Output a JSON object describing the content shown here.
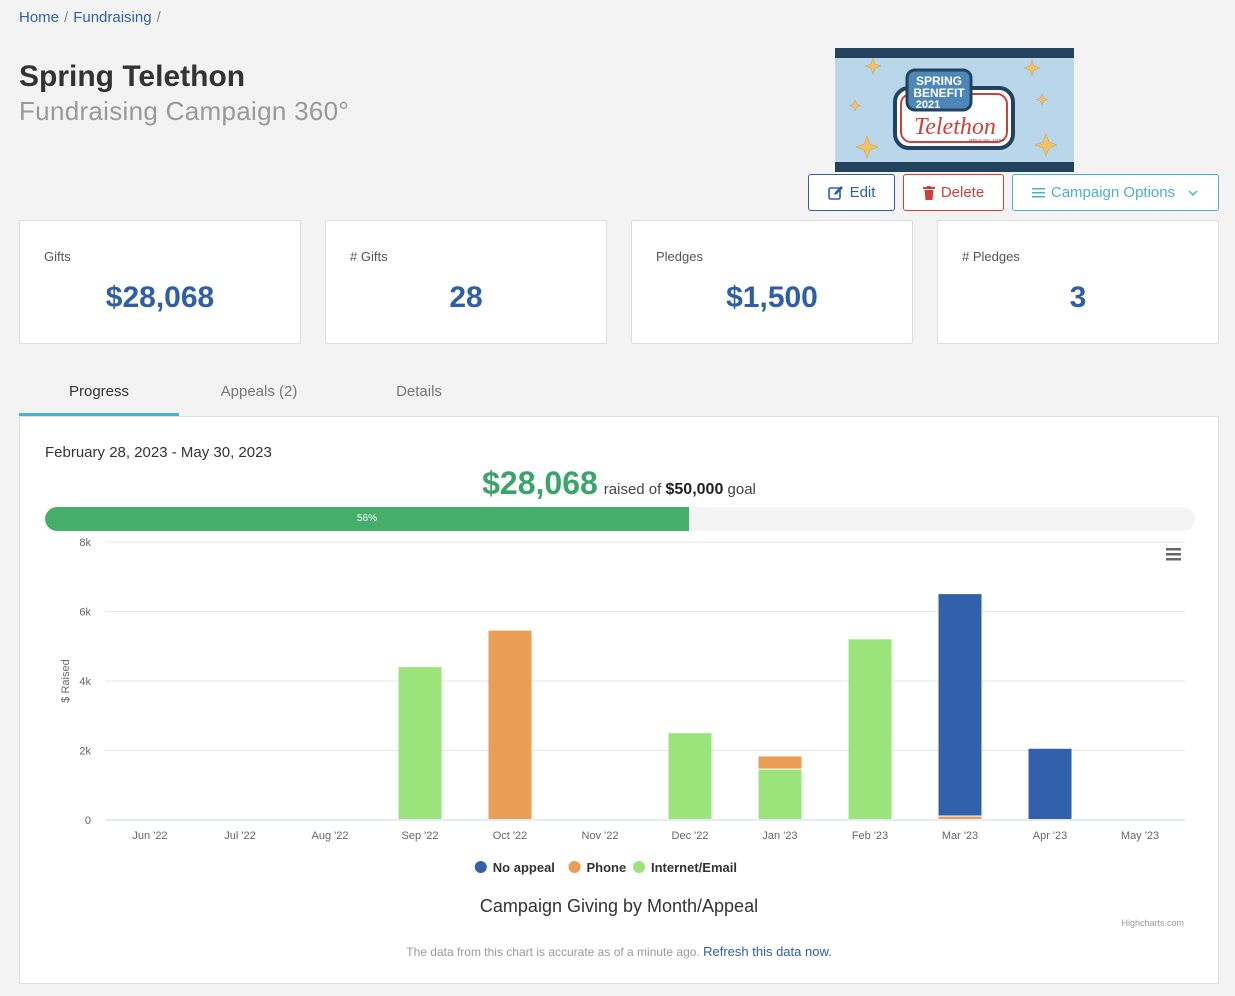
{
  "breadcrumb": {
    "home": "Home",
    "fundraising": "Fundraising",
    "sep": "/"
  },
  "header": {
    "title": "Spring Telethon",
    "subtitle": "Fundraising Campaign 360°"
  },
  "logo": {
    "line1": "SPRING",
    "line2": "BENEFIT",
    "year": "2021",
    "word": "Telethon",
    "date": "APRIL 22, 2021 · 6:00 P.M."
  },
  "actions": {
    "edit": "Edit",
    "delete": "Delete",
    "options": "Campaign Options"
  },
  "stats": [
    {
      "label": "Gifts",
      "value": "$28,068"
    },
    {
      "label": "# Gifts",
      "value": "28"
    },
    {
      "label": "Pledges",
      "value": "$1,500"
    },
    {
      "label": "# Pledges",
      "value": "3"
    }
  ],
  "tabs": [
    "Progress",
    "Appeals (2)",
    "Details"
  ],
  "progress": {
    "date_range": "February 28, 2023 - May 30, 2023",
    "raised": "$28,068",
    "raised_of": "raised of",
    "goal": "$50,000",
    "goal_word": "goal",
    "percent": 56,
    "percent_label": "56%"
  },
  "chart_data": {
    "type": "bar",
    "stacked": true,
    "title": "Campaign Giving by Month/Appeal",
    "ylabel": "$ Raised",
    "ylim": [
      0,
      8000
    ],
    "yticks": [
      "0",
      "2k",
      "4k",
      "6k",
      "8k"
    ],
    "categories": [
      "Jun '22",
      "Jul '22",
      "Aug '22",
      "Sep '22",
      "Oct '22",
      "Nov '22",
      "Dec '22",
      "Jan '23",
      "Feb '23",
      "Mar '23",
      "Apr '23",
      "May '23"
    ],
    "series": [
      {
        "name": "Internet/Email",
        "color": "#9be47b",
        "values": [
          0,
          0,
          0,
          4400,
          0,
          0,
          2500,
          1450,
          5200,
          0,
          0,
          0
        ]
      },
      {
        "name": "Phone",
        "color": "#e99d55",
        "values": [
          0,
          0,
          0,
          0,
          5450,
          0,
          0,
          380,
          0,
          100,
          0,
          0
        ]
      },
      {
        "name": "No appeal",
        "color": "#3360ab",
        "values": [
          0,
          0,
          0,
          0,
          0,
          0,
          0,
          0,
          0,
          6400,
          2050,
          0
        ]
      }
    ],
    "legend_order": [
      "No appeal",
      "Phone",
      "Internet/Email"
    ],
    "legend_placement": "bottom",
    "grid": true,
    "credits": "Highcharts.com"
  },
  "footer": {
    "note": "The data from this chart is accurate as of a minute ago.",
    "refresh": "Refresh this data now."
  }
}
